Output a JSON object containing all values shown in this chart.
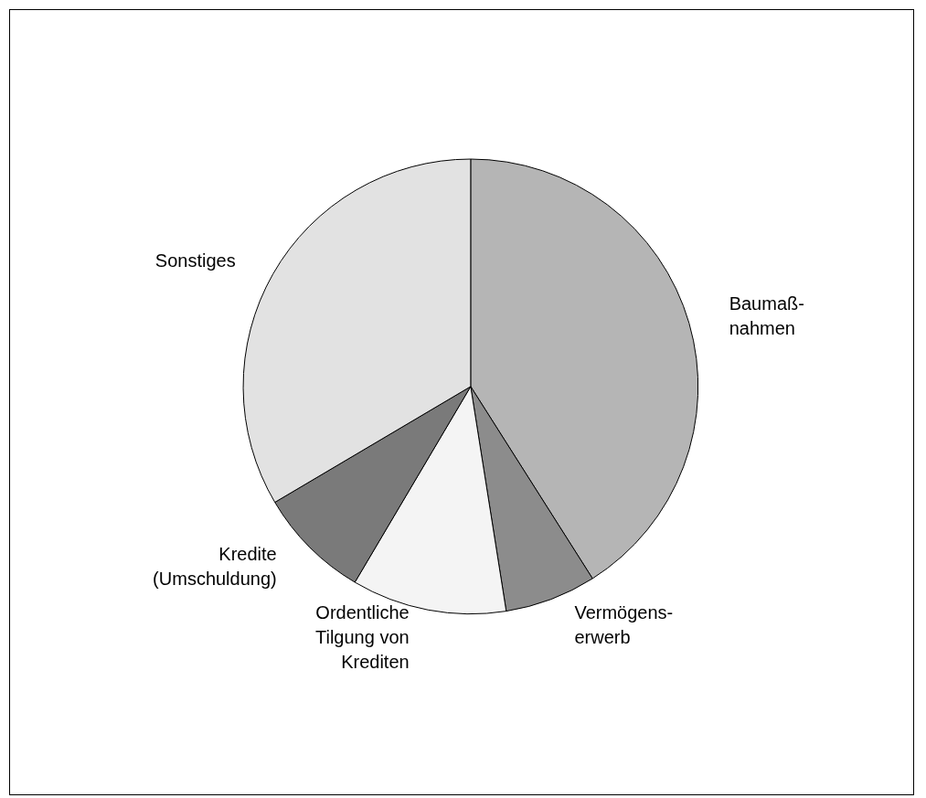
{
  "chart_data": {
    "type": "pie",
    "categories": [
      "Baumaß-\nnahmen",
      "Vermögens-\nerwerb",
      "Ordentliche\nTilgung von\nKrediten",
      "Kredite\n(Umschuldung)",
      "Sonstiges"
    ],
    "values": [
      41,
      6.5,
      11,
      8,
      33.5
    ],
    "colors": [
      "#b5b5b5",
      "#8c8c8c",
      "#f4f4f4",
      "#7a7a7a",
      "#e2e2e2"
    ],
    "legend": false
  }
}
